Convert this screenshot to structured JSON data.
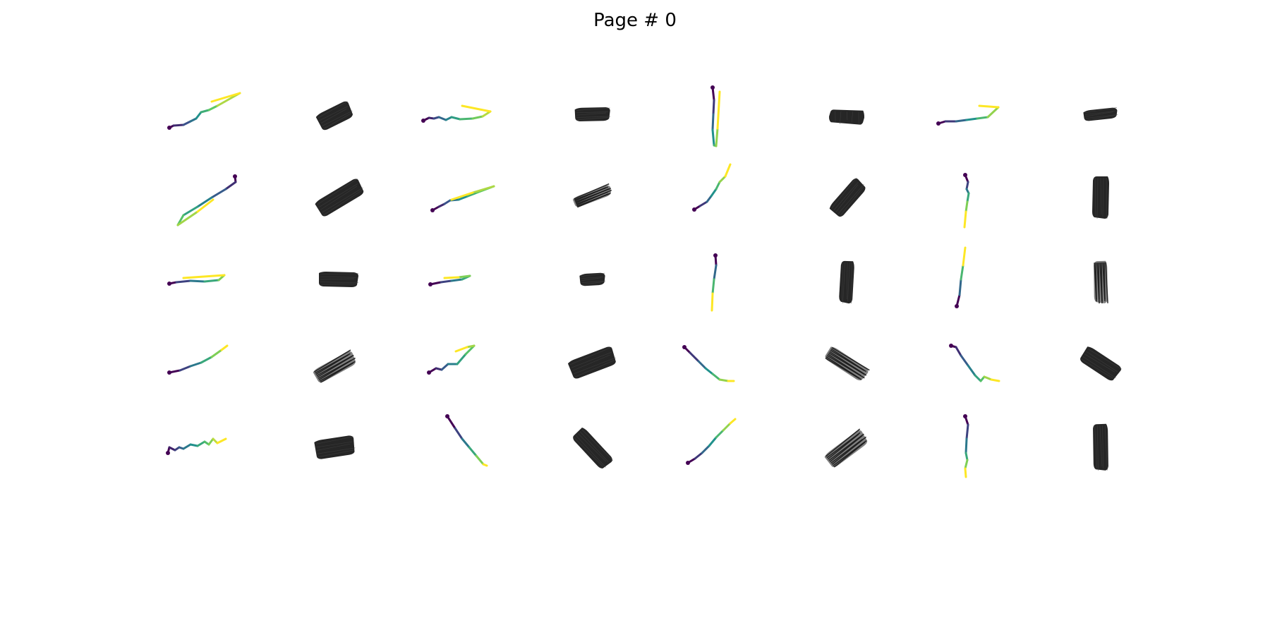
{
  "title": "Page # 0",
  "layout": {
    "rows": 5,
    "pairs_per_row": 4,
    "cell_content": [
      "trajectory",
      "brush-render"
    ]
  },
  "colors": {
    "colormap": "viridis",
    "viridis_stops": [
      "#440154",
      "#3b528b",
      "#21918c",
      "#5ec962",
      "#fde725"
    ],
    "brush": "#1a1a1a",
    "background": "#ffffff"
  }
}
